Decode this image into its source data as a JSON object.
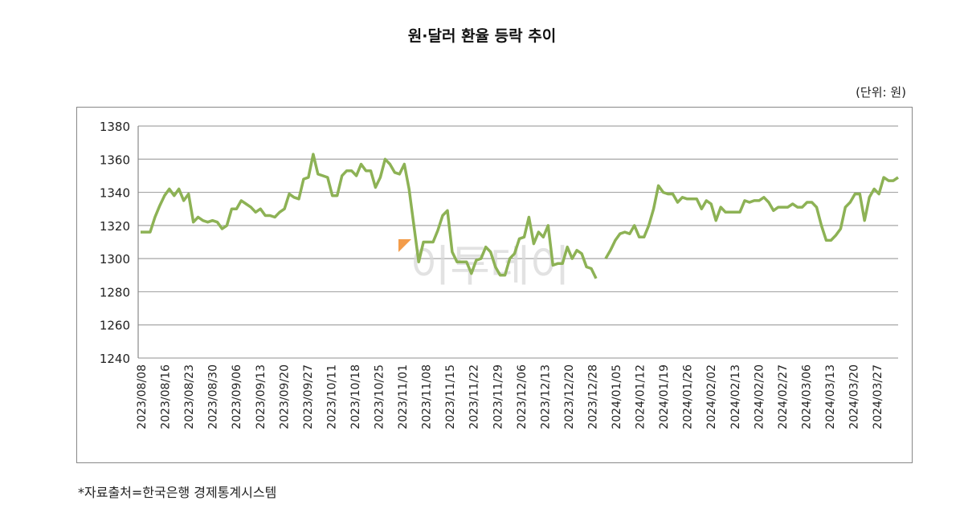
{
  "chart_data": {
    "type": "line",
    "title": "원·달러 환율 등락 추이",
    "unit_label": "(단위: 원)",
    "source": "*자료출처=한국은행 경제통계시스템",
    "watermark": "이투데이",
    "ylim": [
      1240,
      1380
    ],
    "yticks": [
      1240,
      1260,
      1280,
      1300,
      1320,
      1340,
      1360,
      1380
    ],
    "grid": true,
    "line_color": "#8db255",
    "xtick_labels": [
      "2023/08/08",
      "2023/08/16",
      "2023/08/23",
      "2023/08/30",
      "2023/09/06",
      "2023/09/13",
      "2023/09/20",
      "2023/09/27",
      "2023/10/11",
      "2023/10/18",
      "2023/10/25",
      "2023/11/01",
      "2023/11/08",
      "2023/11/15",
      "2023/11/22",
      "2023/11/29",
      "2023/12/06",
      "2023/12/13",
      "2023/12/20",
      "2023/12/28",
      "2024/01/05",
      "2024/01/12",
      "2024/01/19",
      "2024/01/26",
      "2024/02/02",
      "2024/02/13",
      "2024/02/20",
      "2024/02/27",
      "2024/03/06",
      "2024/03/13",
      "2024/03/20",
      "2024/03/27"
    ],
    "series": [
      {
        "name": "원·달러 환율",
        "values": [
          1316,
          1316,
          1316,
          1325,
          1332,
          1338,
          1342,
          1338,
          1342,
          1335,
          1339,
          1322,
          1325,
          1323,
          1322,
          1323,
          1322,
          1318,
          1320,
          1330,
          1330,
          1335,
          1333,
          1331,
          1328,
          1330,
          1326,
          1326,
          1325,
          1328,
          1330,
          1339,
          1337,
          1336,
          1348,
          1349,
          1363,
          1351,
          1350,
          1349,
          1338,
          1338,
          1350,
          1353,
          1353,
          1350,
          1357,
          1353,
          1353,
          1343,
          1349,
          1360,
          1357,
          1352,
          1351,
          1357,
          1342,
          1320,
          1298,
          1310,
          1310,
          1310,
          1317,
          1326,
          1329,
          1304,
          1298,
          1298,
          1298,
          1291,
          1299,
          1300,
          1307,
          1304,
          1295,
          1290,
          1290,
          1300,
          1303,
          1312,
          1313,
          1325,
          1309,
          1316,
          1313,
          1320,
          1296,
          1297,
          1297,
          1307,
          1300,
          1305,
          1303,
          1295,
          1294,
          1288,
          null,
          1300,
          1305,
          1311,
          1315,
          1316,
          1315,
          1320,
          1313,
          1313,
          1320,
          1330,
          1344,
          1340,
          1339,
          1339,
          1334,
          1337,
          1336,
          1336,
          1336,
          1330,
          1335,
          1333,
          1323,
          1331,
          1328,
          1328,
          1328,
          1328,
          1335,
          1334,
          1335,
          1335,
          1337,
          1334,
          1329,
          1331,
          1331,
          1331,
          1333,
          1331,
          1331,
          1334,
          1334,
          1331,
          1320,
          1311,
          1311,
          1314,
          1318,
          1331,
          1334,
          1339,
          1339,
          1323,
          1337,
          1342,
          1339,
          1349,
          1347,
          1347,
          1349
        ]
      }
    ]
  }
}
